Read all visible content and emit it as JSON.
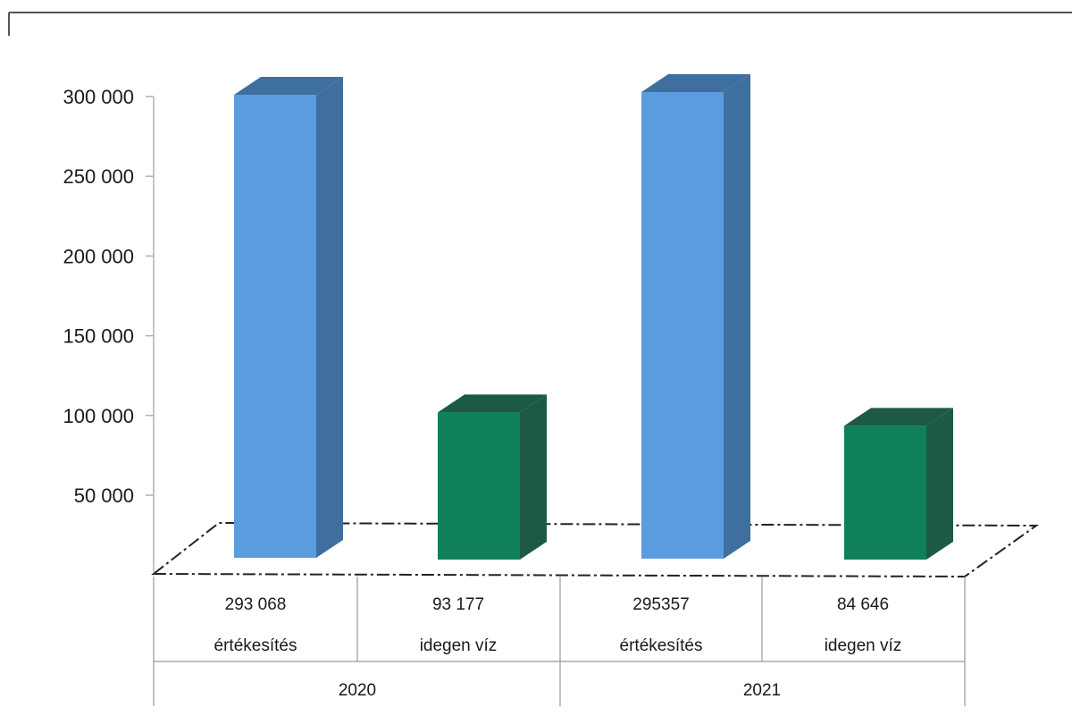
{
  "chart_data": {
    "type": "bar",
    "ylim": [
      0,
      300000
    ],
    "y_ticks": [
      "300 000",
      "250 000",
      "200 000",
      "150 000",
      "100 000",
      "50 000"
    ],
    "y_tick_values": [
      300000,
      250000,
      200000,
      150000,
      100000,
      50000
    ],
    "groups": [
      "2020",
      "2021"
    ],
    "categories": [
      {
        "group": "2020",
        "label": "értékesítés",
        "value_label": "293 068",
        "value": 293068,
        "color": "#5b9be0",
        "side_color": "#3f6f9e"
      },
      {
        "group": "2020",
        "label": "idegen víz",
        "value_label": "93 177",
        "value": 93177,
        "color": "#0f7f5c",
        "side_color": "#1c5a44"
      },
      {
        "group": "2021",
        "label": "értékesítés",
        "value_label": "295357",
        "value": 295357,
        "color": "#5b9be0",
        "side_color": "#3f6f9e"
      },
      {
        "group": "2021",
        "label": "idegen víz",
        "value_label": "84 646",
        "value": 84646,
        "color": "#0f7f5c",
        "side_color": "#1c5a44"
      }
    ],
    "grid": false,
    "legend": "none",
    "style": "3d-column"
  }
}
